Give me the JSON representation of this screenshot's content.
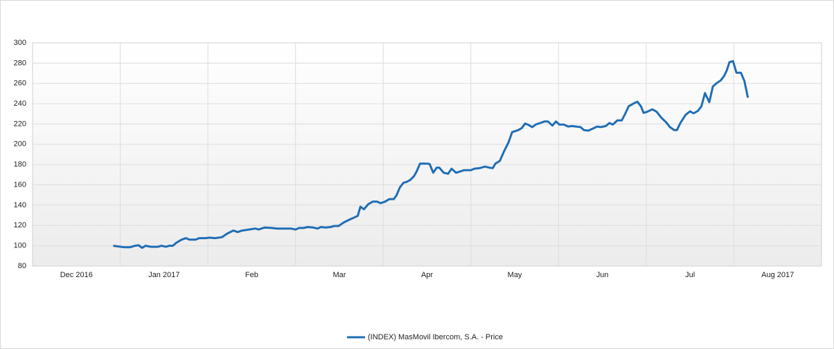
{
  "chart_data": {
    "type": "line",
    "xlim": [
      0,
      9
    ],
    "xticks": [
      {
        "value": 0.5,
        "label": "Dec 2016"
      },
      {
        "value": 1.5,
        "label": "Jan 2017"
      },
      {
        "value": 2.5,
        "label": "Feb"
      },
      {
        "value": 3.5,
        "label": "Mar"
      },
      {
        "value": 4.5,
        "label": "Apr"
      },
      {
        "value": 5.5,
        "label": "May"
      },
      {
        "value": 6.5,
        "label": "Jun"
      },
      {
        "value": 7.5,
        "label": "Jul"
      },
      {
        "value": 8.5,
        "label": "Aug 2017"
      }
    ],
    "ylim": [
      80,
      300
    ],
    "yticks": [
      80,
      100,
      120,
      140,
      160,
      180,
      200,
      220,
      240,
      260,
      280,
      300
    ],
    "grid": true,
    "legend": "bottom",
    "x": [
      0.92,
      1.05,
      1.11,
      1.17,
      1.21,
      1.25,
      1.29,
      1.35,
      1.43,
      1.47,
      1.52,
      1.56,
      1.6,
      1.64,
      1.7,
      1.75,
      1.79,
      1.86,
      1.9,
      1.97,
      2.02,
      2.08,
      2.16,
      2.22,
      2.29,
      2.34,
      2.39,
      2.47,
      2.54,
      2.58,
      2.61,
      2.65,
      2.73,
      2.79,
      2.87,
      2.95,
      3.0,
      3.04,
      3.09,
      3.14,
      3.2,
      3.25,
      3.29,
      3.34,
      3.4,
      3.44,
      3.49,
      3.55,
      3.62,
      3.66,
      3.71,
      3.74,
      3.78,
      3.83,
      3.88,
      3.93,
      3.97,
      4.02,
      4.07,
      4.12,
      4.15,
      4.19,
      4.23,
      4.27,
      4.31,
      4.35,
      4.38,
      4.42,
      4.5,
      4.53,
      4.57,
      4.61,
      4.64,
      4.69,
      4.74,
      4.78,
      4.83,
      4.87,
      4.92,
      5.0,
      5.04,
      5.1,
      5.16,
      5.21,
      5.25,
      5.28,
      5.33,
      5.38,
      5.43,
      5.47,
      5.54,
      5.58,
      5.62,
      5.66,
      5.7,
      5.74,
      5.79,
      5.84,
      5.88,
      5.93,
      5.97,
      6.01,
      6.06,
      6.11,
      6.15,
      6.2,
      6.25,
      6.29,
      6.34,
      6.39,
      6.44,
      6.48,
      6.54,
      6.58,
      6.62,
      6.67,
      6.72,
      6.76,
      6.8,
      6.86,
      6.9,
      6.94,
      6.97,
      7.01,
      7.07,
      7.12,
      7.17,
      7.23,
      7.27,
      7.32,
      7.35,
      7.39,
      7.45,
      7.5,
      7.54,
      7.59,
      7.63,
      7.67,
      7.72,
      7.76,
      7.8,
      7.85,
      7.89,
      7.92,
      7.95,
      7.99,
      8.03,
      8.08,
      8.12,
      8.16
    ],
    "series": [
      {
        "name": "(INDEX) MasMovil Ibercom, S.A. - Price",
        "color": "#1f6db4",
        "values": [
          100,
          98.5,
          98.5,
          100,
          100.5,
          98,
          100,
          99,
          99,
          100,
          99,
          100,
          100,
          103,
          106,
          107.5,
          106,
          106,
          107.5,
          107.5,
          108,
          107.5,
          108.5,
          112,
          115,
          113.5,
          115,
          116,
          117,
          116,
          117,
          118,
          117.5,
          117,
          117,
          117,
          116,
          117.5,
          117.5,
          118.5,
          118,
          117,
          118.5,
          118,
          118.5,
          119.5,
          119.5,
          123,
          126,
          127.5,
          129.5,
          138.5,
          136,
          141,
          143.5,
          143.5,
          142,
          143.5,
          146,
          146,
          149.5,
          157.5,
          162,
          163,
          165,
          168.5,
          173,
          181,
          181,
          180.5,
          172,
          177,
          177,
          172,
          171,
          176,
          172,
          173,
          174.5,
          174.5,
          176,
          176.5,
          178,
          177,
          176.5,
          181,
          183.5,
          193.5,
          202,
          212,
          214,
          216,
          220.5,
          219,
          217,
          219.5,
          221,
          222.5,
          222.5,
          218.5,
          222.5,
          219.5,
          219.5,
          217.5,
          218,
          217.5,
          217,
          214,
          213.5,
          215.5,
          217.5,
          217,
          218,
          221,
          219.5,
          223.5,
          223.5,
          230,
          237.5,
          240.5,
          242,
          237.5,
          231,
          232,
          234.5,
          232,
          226.5,
          221.5,
          217,
          214,
          214,
          221,
          229,
          232.5,
          230.5,
          233,
          237.5,
          250.5,
          241.5,
          257,
          260,
          263,
          267.5,
          273,
          281,
          282,
          270.5,
          270.5,
          262.5,
          246
        ]
      }
    ]
  }
}
